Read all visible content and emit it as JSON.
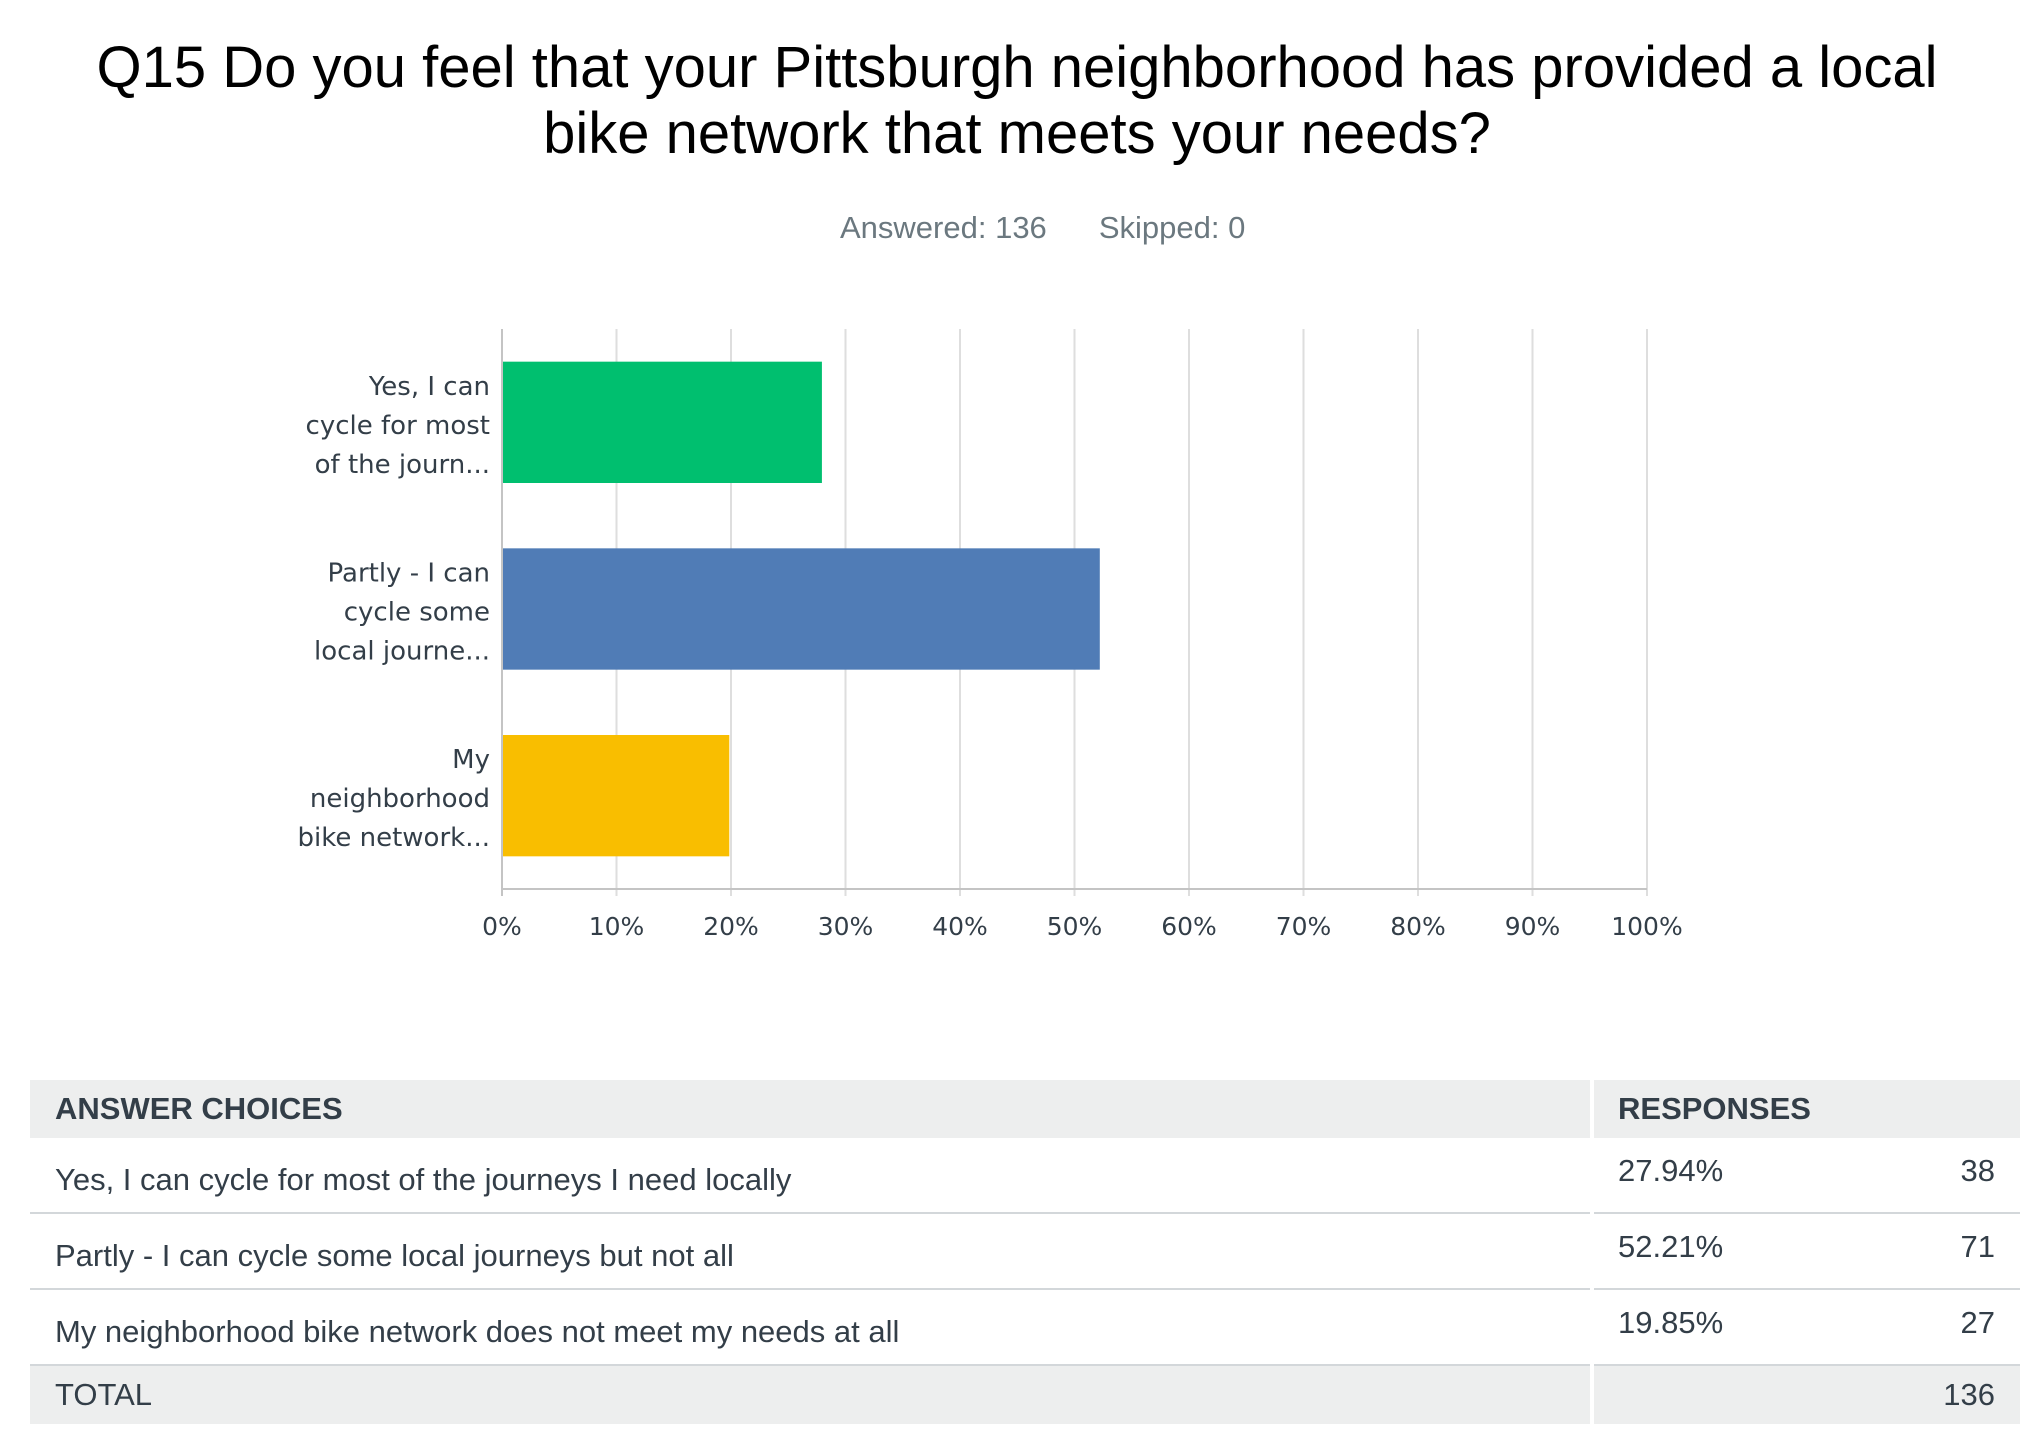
{
  "title_lines": [
    "Q15 Do you feel that your Pittsburgh neighborhood has provided a local",
    "bike network that meets your needs?"
  ],
  "summary": {
    "answered": "Answered: 136",
    "skipped": "Skipped: 0"
  },
  "chart_data": {
    "type": "bar",
    "orientation": "horizontal",
    "categories": [
      [
        "Yes, I can",
        "cycle for most",
        "of the journ..."
      ],
      [
        "Partly - I can",
        "cycle some",
        "local journe..."
      ],
      [
        "My",
        "neighborhood",
        "bike network..."
      ]
    ],
    "values": [
      27.94,
      52.21,
      19.85
    ],
    "xlim": [
      0,
      100
    ],
    "x_tick_values": [
      0,
      10,
      20,
      30,
      40,
      50,
      60,
      70,
      80,
      90,
      100
    ],
    "x_ticks": [
      "0%",
      "10%",
      "20%",
      "30%",
      "40%",
      "50%",
      "60%",
      "70%",
      "80%",
      "90%",
      "100%"
    ],
    "colors": [
      "#00BF6F",
      "#507CB6",
      "#F9BE00"
    ],
    "grid": true
  },
  "table": {
    "headers": {
      "choices": "ANSWER CHOICES",
      "responses": "RESPONSES"
    },
    "rows": [
      {
        "choice": "Yes, I can cycle for most of the journeys I need locally",
        "percent": "27.94%",
        "count": "38"
      },
      {
        "choice": "Partly - I can cycle some local journeys but not all",
        "percent": "52.21%",
        "count": "71"
      },
      {
        "choice": "My neighborhood bike network does not meet my needs at all",
        "percent": "19.85%",
        "count": "27"
      }
    ],
    "total": {
      "label": "TOTAL",
      "count": "136"
    }
  }
}
